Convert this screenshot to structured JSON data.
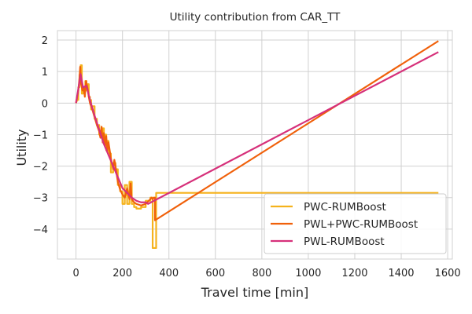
{
  "chart_data": {
    "type": "line",
    "title": "Utility contribution from CAR_TT",
    "xlabel": "Travel time [min]",
    "ylabel": "Utility",
    "xlim": [
      -80,
      1620
    ],
    "ylim": [
      -4.95,
      2.3
    ],
    "xticks": [
      0,
      200,
      400,
      600,
      800,
      1000,
      1200,
      1400,
      1600
    ],
    "yticks": [
      -4,
      -3,
      -2,
      -1,
      0,
      1,
      2
    ],
    "grid": true,
    "legend_position": "lower-right",
    "series": [
      {
        "name": "PWC-RUMBoost",
        "color": "#f5b21c",
        "x": [
          0,
          5,
          10,
          10,
          15,
          15,
          20,
          20,
          25,
          25,
          30,
          30,
          35,
          35,
          40,
          40,
          45,
          45,
          50,
          50,
          55,
          55,
          60,
          60,
          65,
          65,
          70,
          70,
          80,
          80,
          90,
          90,
          100,
          100,
          110,
          110,
          115,
          115,
          120,
          120,
          125,
          125,
          130,
          130,
          135,
          135,
          140,
          140,
          150,
          150,
          160,
          160,
          170,
          170,
          180,
          180,
          190,
          190,
          200,
          200,
          210,
          210,
          220,
          220,
          230,
          230,
          240,
          240,
          250,
          250,
          260,
          260,
          280,
          280,
          300,
          300,
          320,
          320,
          330,
          330,
          335,
          335,
          345,
          345,
          350,
          350,
          1560
        ],
        "values": [
          0,
          0.1,
          0.1,
          0.5,
          0.5,
          0.9,
          0.9,
          1.2,
          1.2,
          0.3,
          0.3,
          0.5,
          0.5,
          0.4,
          0.4,
          0.7,
          0.7,
          0.4,
          0.4,
          0.6,
          0.6,
          0.2,
          0.2,
          0.1,
          0.1,
          -0.2,
          -0.2,
          -0.1,
          -0.1,
          -0.5,
          -0.5,
          -0.7,
          -0.7,
          -1.0,
          -1.0,
          -1.1,
          -1.1,
          -0.8,
          -0.8,
          -1.3,
          -1.3,
          -1.0,
          -1.0,
          -1.5,
          -1.5,
          -1.2,
          -1.2,
          -1.6,
          -1.6,
          -2.2,
          -2.2,
          -1.9,
          -1.9,
          -2.1,
          -2.1,
          -2.6,
          -2.6,
          -2.8,
          -2.8,
          -3.2,
          -3.2,
          -2.6,
          -2.6,
          -3.2,
          -3.2,
          -2.5,
          -2.5,
          -3.2,
          -3.2,
          -3.3,
          -3.3,
          -3.35,
          -3.35,
          -3.3,
          -3.3,
          -3.1,
          -3.1,
          -3.0,
          -3.0,
          -4.6,
          -4.6,
          -4.6,
          -4.6,
          -2.85,
          -2.85,
          -2.85,
          -2.85
        ]
      },
      {
        "name": "PWL+PWC-RUMBoost",
        "color": "#f0600a",
        "x": [
          0,
          10,
          15,
          18,
          22,
          28,
          33,
          38,
          43,
          50,
          55,
          60,
          70,
          80,
          90,
          100,
          105,
          110,
          115,
          120,
          125,
          130,
          135,
          140,
          150,
          160,
          165,
          170,
          180,
          190,
          200,
          210,
          220,
          230,
          235,
          240,
          250,
          260,
          280,
          300,
          320,
          325,
          330,
          335,
          340,
          340,
          1560
        ],
        "values": [
          0,
          0.4,
          0.8,
          1.15,
          0.6,
          0.4,
          0.5,
          0.2,
          0.7,
          0.45,
          0.2,
          0.0,
          -0.2,
          -0.45,
          -0.7,
          -0.9,
          -1.1,
          -0.75,
          -1.25,
          -0.95,
          -1.35,
          -1.05,
          -1.5,
          -1.25,
          -1.75,
          -2.1,
          -1.8,
          -2.0,
          -2.5,
          -2.75,
          -2.9,
          -3.0,
          -2.7,
          -3.05,
          -2.55,
          -3.05,
          -3.15,
          -3.2,
          -3.25,
          -3.2,
          -3.05,
          -3.0,
          -3.05,
          -3.0,
          -3.0,
          -3.72,
          1.97
        ]
      },
      {
        "name": "PWL-RUMBoost",
        "color": "#d6307a",
        "x": [
          0,
          20,
          30,
          45,
          60,
          80,
          100,
          120,
          140,
          160,
          180,
          200,
          240,
          260,
          280,
          300,
          310,
          1560
        ],
        "values": [
          0,
          0.92,
          0.5,
          0.55,
          0.1,
          -0.4,
          -0.85,
          -1.3,
          -1.65,
          -2.0,
          -2.35,
          -2.7,
          -3.0,
          -3.1,
          -3.15,
          -3.15,
          -3.2,
          1.62
        ]
      }
    ]
  }
}
